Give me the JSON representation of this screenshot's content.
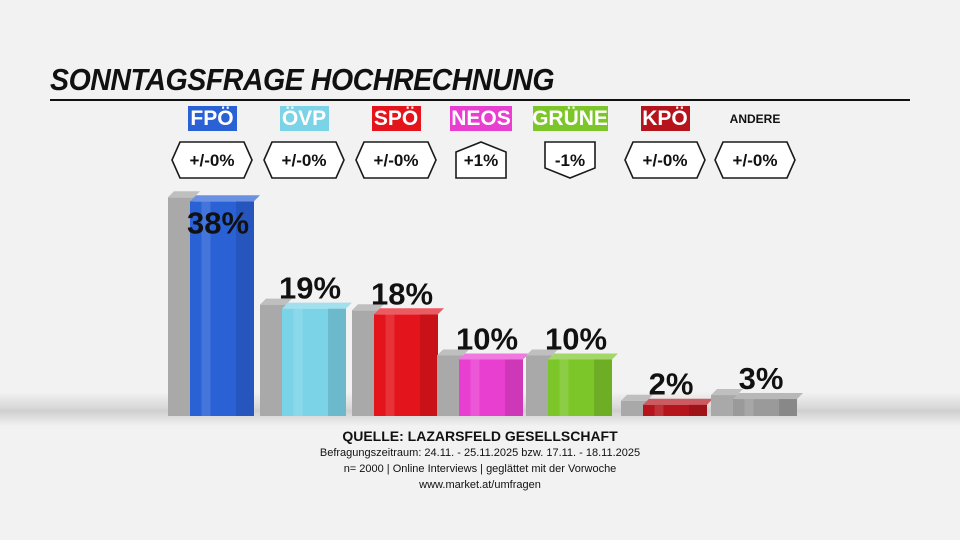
{
  "title": "SONNTAGSFRAGE HOCHRECHNUNG",
  "chart_data": {
    "type": "bar",
    "title": "SONNTAGSFRAGE HOCHRECHNUNG",
    "categories": [
      "FPÖ",
      "ÖVP",
      "SPÖ",
      "NEOS",
      "GRÜNE",
      "KPÖ",
      "ANDERE"
    ],
    "values": [
      38,
      19,
      18,
      10,
      10,
      2,
      3
    ],
    "value_labels": [
      "38%",
      "19%",
      "18%",
      "10%",
      "10%",
      "2%",
      "3%"
    ],
    "changes": [
      "+/-0%",
      "+/-0%",
      "+/-0%",
      "+1%",
      "-1%",
      "+/-0%",
      "+/-0%"
    ],
    "change_direction": [
      "neutral",
      "neutral",
      "neutral",
      "up",
      "down",
      "neutral",
      "neutral"
    ],
    "ylim": [
      0,
      40
    ],
    "xlabel": "",
    "ylabel": ""
  },
  "colors": {
    "FPÖ": "#2a62d6",
    "ÖVP": "#7ad3e6",
    "SPÖ": "#e3141c",
    "NEOS": "#e83fd0",
    "GRÜNE": "#7cc62a",
    "KPÖ": "#b5141c",
    "ANDERE": "#9a9a9a",
    "previous": "#a9a9a9"
  },
  "source": {
    "title": "QUELLE: LAZARSFELD GESELLSCHAFT",
    "line1": "Befragungszeitraum:  24.11. - 25.11.2025   bzw.   17.11. - 18.11.2025",
    "line2": "n= 2000 | Online Interviews | geglättet mit der Vorwoche",
    "line3": "www.market.at/umfragen"
  }
}
